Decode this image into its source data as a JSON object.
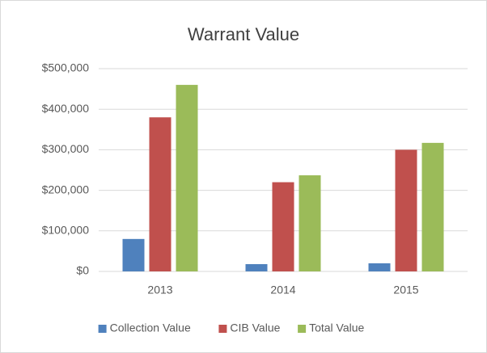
{
  "chart_data": {
    "type": "bar",
    "title": "Warrant Value",
    "categories": [
      "2013",
      "2014",
      "2015"
    ],
    "series": [
      {
        "name": "Collection Value",
        "color": "#4f81bd",
        "values": [
          80000,
          18000,
          20000
        ]
      },
      {
        "name": "CIB Value",
        "color": "#c0504d",
        "values": [
          380000,
          220000,
          300000
        ]
      },
      {
        "name": "Total Value",
        "color": "#9bbb59",
        "values": [
          460000,
          237000,
          317000
        ]
      }
    ],
    "ylim": [
      0,
      500000
    ],
    "yticks": [
      {
        "value": 0,
        "label": "$0"
      },
      {
        "value": 100000,
        "label": "$100,000"
      },
      {
        "value": 200000,
        "label": "$200,000"
      },
      {
        "value": 300000,
        "label": "$300,000"
      },
      {
        "value": 400000,
        "label": "$400,000"
      },
      {
        "value": 500000,
        "label": "$500,000"
      }
    ],
    "grid": true,
    "legend": "bottom"
  }
}
